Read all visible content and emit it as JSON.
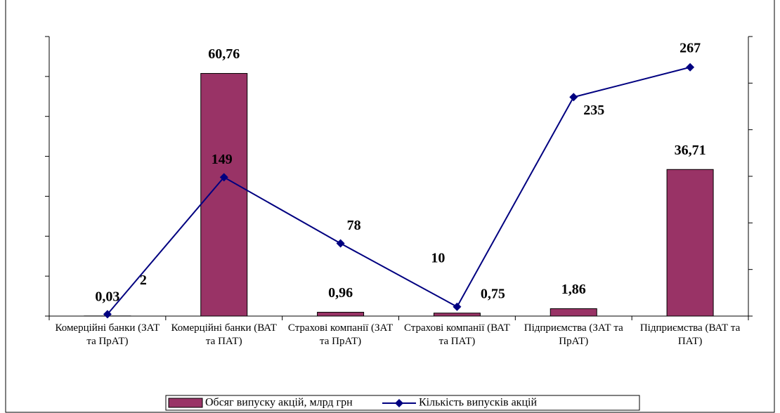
{
  "chart_data": {
    "type": "bar_line",
    "categories": [
      "Комерційні банки (ЗАТ та ПрАТ)",
      "Комерційні банки (ВАТ та ПАТ)",
      "Страхові компанії (ЗАТ та ПрАТ)",
      "Страхові компанії (ВАТ та ПАТ)",
      "Підприємства (ЗАТ та ПрАТ)",
      "Підприємства (ВАТ та ПАТ)"
    ],
    "series": [
      {
        "name": "Обсяг випуску акцій, млрд грн",
        "type": "bar",
        "color": "#993366",
        "values": [
          0.03,
          60.76,
          0.96,
          0.75,
          1.86,
          36.71
        ],
        "value_labels": [
          "0,03",
          "60,76",
          "0,96",
          "0,75",
          "1,86",
          "36,71"
        ]
      },
      {
        "name": "Кількість випусків акцій",
        "type": "line",
        "axis": "y2",
        "color": "#000080",
        "values": [
          2,
          149,
          78,
          10,
          235,
          267
        ]
      }
    ],
    "ylim": [
      0,
      70
    ],
    "yticks": [
      0,
      10,
      20,
      30,
      40,
      50,
      60,
      70
    ],
    "y2lim": [
      0,
      300
    ],
    "y2ticks": [
      0,
      50,
      100,
      150,
      200,
      250,
      300
    ],
    "legend": "bottom"
  }
}
